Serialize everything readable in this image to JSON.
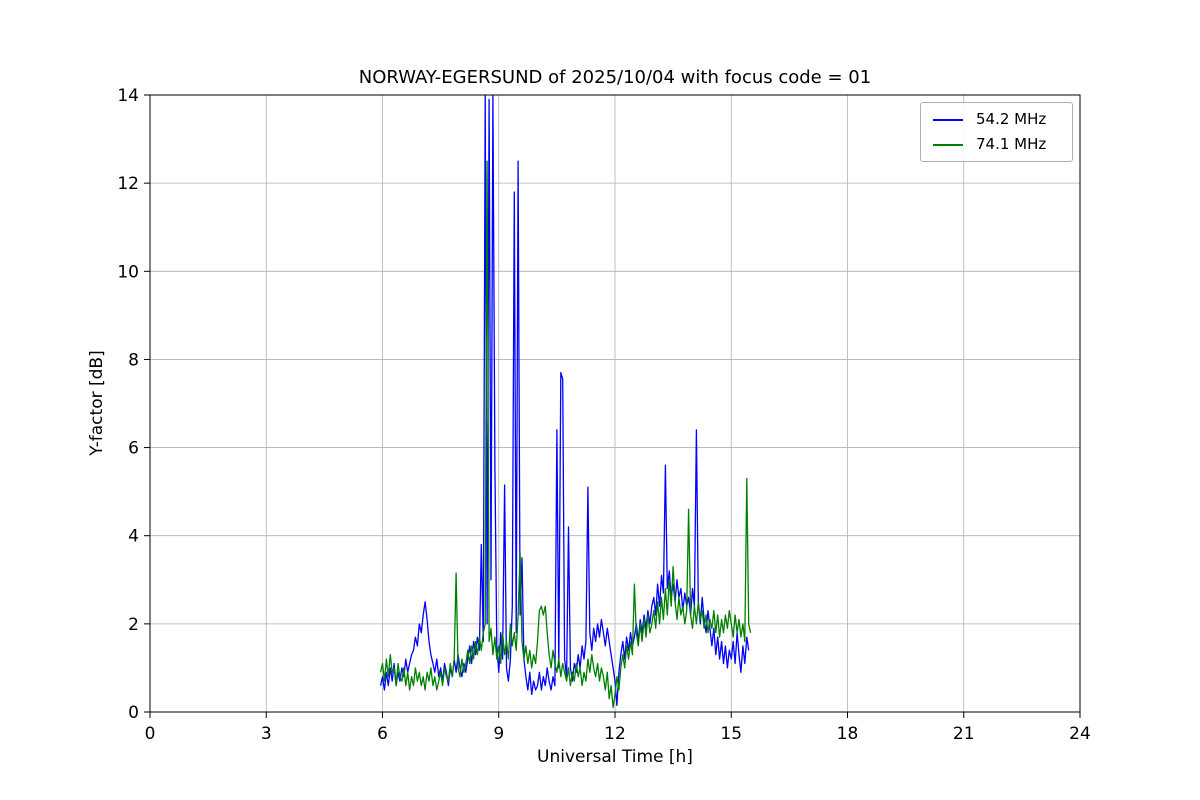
{
  "chart_data": {
    "type": "line",
    "title": "NORWAY-EGERSUND of 2025/10/04 with focus code = 01",
    "xlabel": "Universal Time [h]",
    "ylabel": "Y-factor [dB]",
    "xlim": [
      0,
      24
    ],
    "ylim": [
      0,
      14
    ],
    "x_ticks": [
      0,
      3,
      6,
      9,
      12,
      15,
      18,
      21,
      24
    ],
    "y_ticks": [
      0,
      2,
      4,
      6,
      8,
      10,
      12,
      14
    ],
    "grid": true,
    "grid_color": "#b0b0b0",
    "frame_color": "#000000",
    "legend_position": "upper right",
    "series": [
      {
        "name": "54.2 MHz",
        "color": "#0000ff",
        "x_start": 5.95,
        "x_step": 0.05,
        "values": [
          0.6,
          0.8,
          0.5,
          0.9,
          0.6,
          1.0,
          0.7,
          1.1,
          0.6,
          0.9,
          0.7,
          1.0,
          0.8,
          1.2,
          0.9,
          1.1,
          1.3,
          1.4,
          1.7,
          1.5,
          2.0,
          1.8,
          2.2,
          2.5,
          2.1,
          1.6,
          1.3,
          1.1,
          0.9,
          1.2,
          0.8,
          1.0,
          0.7,
          1.1,
          0.9,
          0.6,
          1.0,
          0.8,
          1.2,
          0.9,
          1.3,
          1.0,
          0.8,
          1.1,
          0.9,
          1.2,
          1.5,
          1.1,
          1.6,
          1.3,
          1.7,
          1.4,
          3.8,
          1.6,
          14.2,
          2.0,
          13.9,
          3.0,
          14.1,
          5.6,
          1.5,
          0.9,
          1.8,
          1.2,
          5.15,
          1.0,
          0.7,
          1.2,
          2.4,
          11.8,
          1.8,
          12.5,
          2.2,
          3.5,
          1.2,
          0.8,
          0.5,
          0.9,
          0.4,
          0.7,
          0.5,
          0.6,
          0.9,
          0.5,
          0.8,
          0.6,
          1.0,
          0.7,
          0.5,
          0.8,
          0.6,
          6.4,
          1.0,
          7.7,
          7.55,
          1.2,
          0.8,
          4.2,
          1.0,
          0.7,
          1.1,
          0.9,
          1.3,
          1.0,
          1.5,
          1.2,
          1.6,
          5.1,
          1.8,
          1.4,
          1.9,
          1.6,
          2.0,
          1.7,
          2.1,
          1.8,
          1.5,
          1.9,
          1.6,
          1.3,
          1.0,
          0.7,
          0.15,
          0.9,
          1.3,
          1.6,
          1.2,
          1.7,
          1.4,
          1.8,
          1.5,
          1.7,
          2.0,
          1.6,
          2.1,
          1.8,
          2.2,
          1.9,
          2.3,
          2.0,
          2.4,
          2.6,
          2.2,
          2.9,
          2.4,
          3.1,
          2.7,
          5.6,
          2.8,
          3.2,
          2.6,
          2.9,
          2.5,
          3.0,
          2.6,
          2.8,
          2.3,
          2.7,
          2.4,
          2.6,
          2.2,
          2.8,
          2.4,
          6.4,
          2.5,
          2.0,
          2.6,
          2.1,
          1.8,
          2.3,
          1.9,
          1.5,
          1.9,
          1.3,
          1.7,
          1.2,
          1.6,
          1.1,
          1.5,
          1.0,
          1.4,
          1.2,
          1.6,
          1.1,
          1.8,
          1.3,
          0.9,
          1.5,
          1.1,
          1.7,
          1.4
        ]
      },
      {
        "name": "74.1 MHz",
        "color": "#008000",
        "x_start": 5.95,
        "x_step": 0.05,
        "values": [
          0.9,
          1.1,
          0.7,
          1.2,
          0.8,
          1.3,
          0.9,
          1.0,
          0.6,
          1.1,
          0.8,
          0.7,
          1.0,
          0.6,
          0.9,
          0.5,
          0.8,
          0.6,
          1.0,
          0.7,
          0.9,
          0.6,
          0.8,
          0.5,
          0.9,
          0.7,
          1.0,
          0.6,
          0.8,
          0.5,
          0.7,
          0.9,
          0.6,
          1.0,
          0.8,
          0.7,
          1.1,
          0.8,
          1.2,
          3.15,
          1.0,
          0.8,
          1.2,
          0.9,
          1.1,
          1.4,
          1.1,
          1.5,
          1.2,
          1.6,
          1.3,
          1.7,
          1.4,
          1.8,
          2.0,
          12.5,
          1.6,
          1.9,
          1.3,
          1.7,
          1.2,
          1.5,
          1.1,
          1.8,
          1.3,
          1.6,
          1.2,
          2.0,
          1.5,
          1.8,
          1.4,
          2.2,
          3.6,
          1.6,
          1.2,
          1.5,
          1.1,
          1.4,
          1.0,
          1.3,
          1.1,
          1.6,
          2.3,
          2.4,
          2.2,
          2.4,
          1.8,
          1.3,
          1.0,
          1.4,
          1.1,
          0.9,
          1.2,
          0.8,
          1.1,
          0.9,
          0.7,
          1.0,
          0.6,
          0.9,
          0.7,
          1.1,
          0.8,
          1.0,
          0.6,
          0.9,
          0.7,
          1.2,
          0.9,
          1.3,
          1.0,
          0.8,
          1.1,
          0.7,
          1.0,
          0.8,
          0.5,
          0.9,
          0.3,
          0.6,
          0.1,
          0.4,
          0.8,
          0.5,
          1.0,
          1.3,
          1.0,
          1.5,
          1.2,
          1.6,
          1.3,
          2.9,
          1.8,
          1.5,
          2.0,
          1.6,
          2.1,
          1.7,
          2.2,
          1.8,
          2.0,
          2.3,
          1.9,
          2.5,
          2.0,
          2.6,
          2.1,
          2.8,
          2.2,
          3.0,
          2.4,
          3.3,
          2.5,
          2.1,
          2.6,
          2.2,
          2.4,
          2.0,
          2.3,
          4.6,
          2.2,
          1.9,
          2.4,
          2.0,
          2.5,
          2.1,
          2.3,
          1.9,
          2.2,
          1.8,
          2.1,
          1.9,
          2.3,
          1.8,
          2.2,
          1.7,
          2.1,
          1.8,
          2.2,
          1.9,
          2.3,
          2.0,
          1.7,
          2.2,
          1.8,
          2.1,
          1.7,
          2.0,
          1.6,
          5.3,
          2.0,
          1.8
        ]
      }
    ]
  }
}
